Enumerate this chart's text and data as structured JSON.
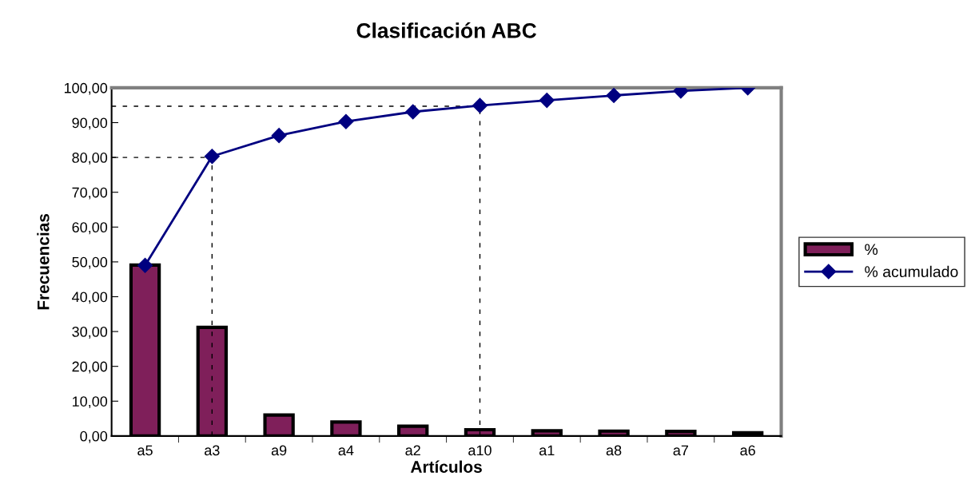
{
  "chart_data": {
    "type": "bar",
    "title": "Clasificación ABC",
    "xlabel": "Artículos",
    "ylabel": "Frecuencias",
    "categories": [
      "a5",
      "a3",
      "a9",
      "a4",
      "a2",
      "a10",
      "a1",
      "a8",
      "a7",
      "a6"
    ],
    "series": [
      {
        "name": "%",
        "color": "#7f1f5a",
        "values": [
          49.1,
          31.2,
          6.0,
          4.0,
          2.8,
          1.8,
          1.5,
          1.4,
          1.3,
          0.9
        ]
      },
      {
        "name": "% acumulado",
        "type": "line",
        "color": "#000080",
        "marker": "diamond",
        "line_style": "solid",
        "values": [
          49.0,
          80.3,
          86.3,
          90.3,
          93.1,
          94.9,
          96.4,
          97.8,
          99.1,
          100.0
        ]
      }
    ],
    "ylim": [
      0,
      100
    ],
    "yticks": [
      {
        "value": 0,
        "label": "0,00"
      },
      {
        "value": 10,
        "label": "10,00"
      },
      {
        "value": 20,
        "label": "20,00"
      },
      {
        "value": 30,
        "label": "30,00"
      },
      {
        "value": 40,
        "label": "40,00"
      },
      {
        "value": 50,
        "label": "50,00"
      },
      {
        "value": 60,
        "label": "60,00"
      },
      {
        "value": 70,
        "label": "70,00"
      },
      {
        "value": 80,
        "label": "80,00"
      },
      {
        "value": 90,
        "label": "90,00"
      },
      {
        "value": 100,
        "label": "100,00"
      }
    ],
    "ref_lines": [
      {
        "axis": "y",
        "value": 80,
        "color": "#000000",
        "line_style": "dashed"
      },
      {
        "axis": "x",
        "value": "a3",
        "color": "#000000",
        "line_style": "dashed"
      },
      {
        "axis": "y",
        "value": 94.7,
        "color": "#000000",
        "line_style": "dashed"
      },
      {
        "axis": "x",
        "value": "a10",
        "color": "#000000",
        "line_style": "dashed"
      }
    ],
    "grid": false,
    "legend": "right"
  }
}
